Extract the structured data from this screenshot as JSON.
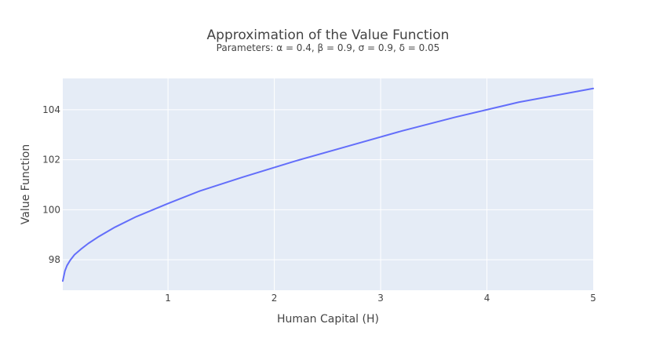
{
  "chart_data": {
    "type": "line",
    "title": "Approximation of the Value Function",
    "subtitle": "Parameters: α = 0.4, β = 0.9, σ = 0.9, δ = 0.05",
    "xlabel": "Human Capital (H)",
    "ylabel": "Value Function",
    "xlim": [
      0.01,
      5.0
    ],
    "ylim": [
      96.78,
      105.25
    ],
    "x_ticks": [
      1,
      2,
      3,
      4,
      5
    ],
    "y_ticks": [
      98,
      100,
      102,
      104
    ],
    "grid": true,
    "series": [
      {
        "color": "#636efa",
        "x": [
          0.01,
          0.03,
          0.05,
          0.08,
          0.12,
          0.18,
          0.25,
          0.35,
          0.5,
          0.7,
          1.0,
          1.3,
          1.7,
          2.2,
          2.7,
          3.2,
          3.7,
          4.3,
          5.0
        ],
        "y": [
          97.15,
          97.55,
          97.77,
          97.98,
          98.2,
          98.42,
          98.65,
          98.93,
          99.3,
          99.72,
          100.25,
          100.75,
          101.3,
          101.95,
          102.55,
          103.15,
          103.7,
          104.3,
          104.85
        ]
      }
    ]
  }
}
